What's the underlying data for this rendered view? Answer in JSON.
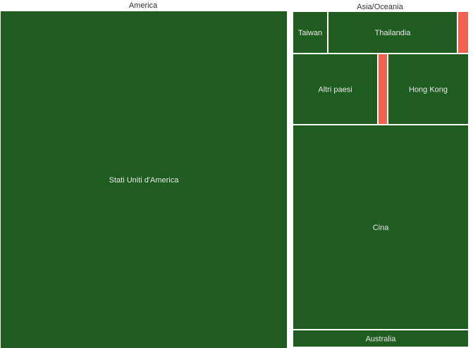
{
  "chart_data": {
    "type": "treemap",
    "groups": [
      {
        "name": "America",
        "items": [
          {
            "label": "Stati Uniti d'America",
            "value": 198,
            "color": "#1f5c1f"
          }
        ]
      },
      {
        "name": "Asia/Oceania",
        "items": [
          {
            "label": "Taiwan",
            "value": 3,
            "color": "#1f5c1f"
          },
          {
            "label": "Thailandia",
            "value": 12,
            "color": "#1f5c1f"
          },
          {
            "label": "",
            "value": 1,
            "color": "#f4624f"
          },
          {
            "label": "Altri paesi",
            "value": 12,
            "color": "#1f5c1f"
          },
          {
            "label": "",
            "value": 1.4,
            "color": "#f4624f"
          },
          {
            "label": "Hong Kong",
            "value": 11,
            "color": "#1f5c1f"
          },
          {
            "label": "Cina",
            "value": 60,
            "color": "#1f5c1f"
          },
          {
            "label": "Australia",
            "value": 5,
            "color": "#1f5c1f"
          }
        ]
      }
    ]
  },
  "colors": {
    "positive": "#1f5c1f",
    "negative": "#f4624f",
    "background": "#ffffff",
    "label": "#e8e8e8",
    "header": "#333333"
  }
}
